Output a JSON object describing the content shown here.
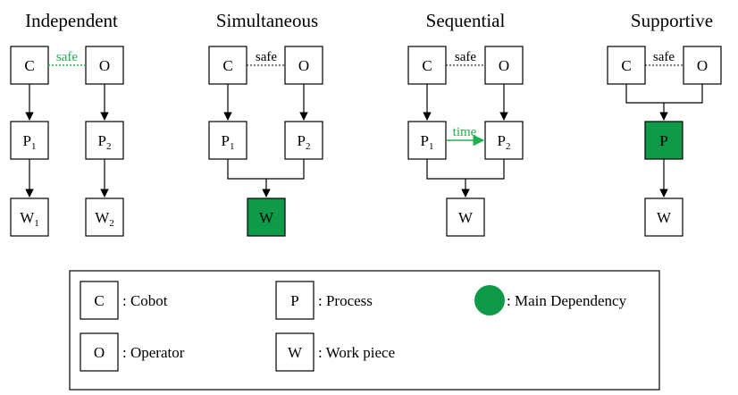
{
  "colors": {
    "main_dependency": "#0e9a48",
    "safe_green": "#1fb04d",
    "line": "#000000"
  },
  "panels": [
    {
      "title": "Independent",
      "note_label": "safe",
      "boxes": {
        "cobot": "C",
        "operator": "O",
        "process_1": {
          "main": "P",
          "sub": "1"
        },
        "process_2": {
          "main": "P",
          "sub": "2"
        },
        "workpiece_1": {
          "main": "W",
          "sub": "1"
        },
        "workpiece_2": {
          "main": "W",
          "sub": "2"
        }
      }
    },
    {
      "title": "Simultaneous",
      "note_label": "safe",
      "boxes": {
        "cobot": "C",
        "operator": "O",
        "process_1": {
          "main": "P",
          "sub": "1"
        },
        "process_2": {
          "main": "P",
          "sub": "2"
        },
        "workpiece": "W"
      }
    },
    {
      "title": "Sequential",
      "note_label": "safe",
      "time_label": "time",
      "boxes": {
        "cobot": "C",
        "operator": "O",
        "process_1": {
          "main": "P",
          "sub": "1"
        },
        "process_2": {
          "main": "P",
          "sub": "2"
        },
        "workpiece": "W"
      }
    },
    {
      "title": "Supportive",
      "note_label": "safe",
      "boxes": {
        "cobot": "C",
        "operator": "O",
        "process": "P",
        "workpiece": "W"
      }
    }
  ],
  "legend": {
    "items": [
      {
        "symbol": "C",
        "label": ": Cobot"
      },
      {
        "symbol": "O",
        "label": ": Operator"
      },
      {
        "symbol": "P",
        "label": ": Process"
      },
      {
        "symbol": "W",
        "label": ": Work piece"
      },
      {
        "symbol": "",
        "label": ": Main Dependency"
      }
    ]
  }
}
